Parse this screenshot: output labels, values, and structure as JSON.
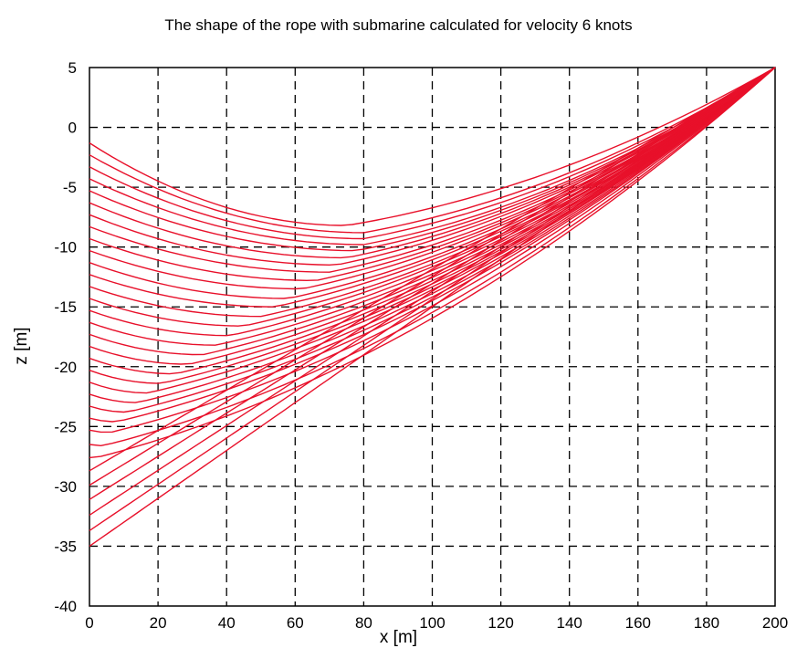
{
  "chart_data": {
    "type": "line",
    "title": "The shape of the rope with submarine calculated for velocity 6 knots",
    "xlabel": "x [m]",
    "ylabel": "z [m]",
    "xlim": [
      0,
      200
    ],
    "ylim": [
      -40,
      5
    ],
    "xticks": [
      0,
      20,
      40,
      60,
      80,
      100,
      120,
      140,
      160,
      180,
      200
    ],
    "yticks": [
      -40,
      -35,
      -30,
      -25,
      -20,
      -15,
      -10,
      -5,
      0,
      5
    ],
    "xtick_labels": [
      "0",
      "20",
      "40",
      "60",
      "80",
      "100",
      "120",
      "140",
      "160",
      "180",
      "200"
    ],
    "ytick_labels": [
      "-40",
      "-35",
      "-30",
      "-25",
      "-20",
      "-15",
      "-10",
      "-5",
      "0",
      "5"
    ],
    "grid": true,
    "grid_style": "dashed",
    "line_color": "#e8102a",
    "anchor_point": [
      200,
      5
    ],
    "series": [
      {
        "z0": -1.3,
        "min_x": 75,
        "min_z": -8.2
      },
      {
        "z0": -2.3,
        "min_x": 80,
        "min_z": -8.8
      },
      {
        "z0": -3.3,
        "min_x": 80,
        "min_z": -9.3
      },
      {
        "z0": -4.3,
        "min_x": 80,
        "min_z": -9.8
      },
      {
        "z0": -5.3,
        "min_x": 78,
        "min_z": -10.3
      },
      {
        "z0": -6.3,
        "min_x": 75,
        "min_z": -10.9
      },
      {
        "z0": -7.3,
        "min_x": 72,
        "min_z": -11.5
      },
      {
        "z0": -8.3,
        "min_x": 70,
        "min_z": -12.1
      },
      {
        "z0": -9.3,
        "min_x": 66,
        "min_z": -12.8
      },
      {
        "z0": -10.3,
        "min_x": 62,
        "min_z": -13.5
      },
      {
        "z0": -11.3,
        "min_x": 58,
        "min_z": -14.3
      },
      {
        "z0": -12.3,
        "min_x": 54,
        "min_z": -15.0
      },
      {
        "z0": -13.3,
        "min_x": 50,
        "min_z": -15.8
      },
      {
        "z0": -14.3,
        "min_x": 45,
        "min_z": -16.6
      },
      {
        "z0": -15.3,
        "min_x": 41,
        "min_z": -17.4
      },
      {
        "z0": -16.3,
        "min_x": 37,
        "min_z": -18.2
      },
      {
        "z0": -17.3,
        "min_x": 33,
        "min_z": -19.0
      },
      {
        "z0": -18.3,
        "min_x": 29,
        "min_z": -19.8
      },
      {
        "z0": -19.3,
        "min_x": 25,
        "min_z": -20.6
      },
      {
        "z0": -20.3,
        "min_x": 21,
        "min_z": -21.4
      },
      {
        "z0": -21.3,
        "min_x": 17,
        "min_z": -22.2
      },
      {
        "z0": -22.3,
        "min_x": 14,
        "min_z": -23.0
      },
      {
        "z0": -23.3,
        "min_x": 11,
        "min_z": -23.8
      },
      {
        "z0": -24.3,
        "min_x": 8,
        "min_z": -24.6
      },
      {
        "z0": -25.3,
        "min_x": 6,
        "min_z": -25.5
      },
      {
        "z0": -26.5,
        "min_x": 4,
        "min_z": -26.6
      },
      {
        "z0": -27.6,
        "min_x": 2,
        "min_z": -27.6
      },
      {
        "z0": -28.7,
        "min_x": 0,
        "min_z": -28.7
      },
      {
        "z0": -29.9,
        "min_x": 0,
        "min_z": -29.9
      },
      {
        "z0": -31.1,
        "min_x": 0,
        "min_z": -31.1
      },
      {
        "z0": -32.4,
        "min_x": 0,
        "min_z": -32.4
      },
      {
        "z0": -33.7,
        "min_x": 0,
        "min_z": -33.7
      },
      {
        "z0": -35.0,
        "min_x": 0,
        "min_z": -35.0
      }
    ]
  }
}
